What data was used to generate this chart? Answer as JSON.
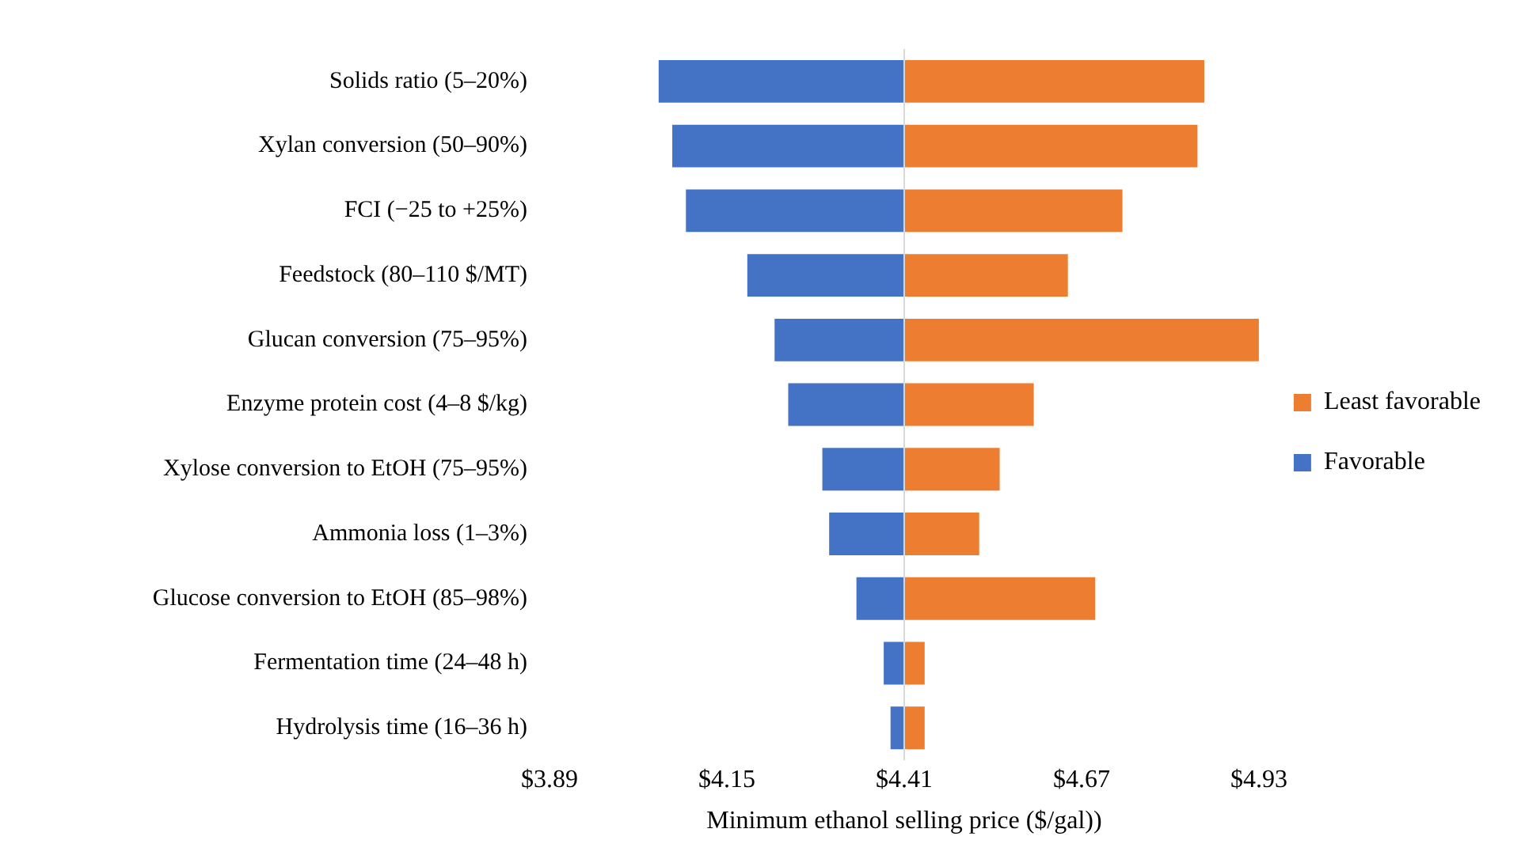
{
  "chart_data": {
    "type": "bar",
    "orientation": "horizontal",
    "xlabel": "Minimum ethanol selling price ($/gal))",
    "categories": [
      "Solids ratio (5–20%)",
      "Xylan conversion (50–90%)",
      "FCI (−25 to +25%)",
      "Feedstock (80–110 $/MT)",
      "Glucan conversion (75–95%)",
      "Enzyme protein cost (4–8 $/kg)",
      "Xylose conversion to EtOH (75–95%)",
      "Ammonia loss (1–3%)",
      "Glucose conversion to EtOH (85–98%)",
      "Fermentation time (24–48 h)",
      "Hydrolysis time (16–36 h)"
    ],
    "series": [
      {
        "name": "Least favorable",
        "color": "#ed7d31",
        "base": [
          4.41,
          4.41,
          4.41,
          4.41,
          4.41,
          4.41,
          4.41,
          4.41,
          4.41,
          4.41,
          4.41
        ],
        "values": [
          0.44,
          0.43,
          0.32,
          0.24,
          0.53,
          0.19,
          0.14,
          0.11,
          0.28,
          0.03,
          0.03
        ]
      },
      {
        "name": "Favorable",
        "color": "#4472c4",
        "base": [
          4.41,
          4.41,
          4.41,
          4.41,
          4.41,
          4.41,
          4.41,
          4.41,
          4.41,
          4.41,
          4.41
        ],
        "values": [
          -0.36,
          -0.34,
          -0.32,
          -0.23,
          -0.19,
          -0.17,
          -0.12,
          -0.11,
          -0.07,
          -0.03,
          -0.02
        ]
      }
    ],
    "xlim": [
      3.89,
      4.93
    ],
    "xticks": [
      {
        "value": 3.89,
        "label": "$3.89"
      },
      {
        "value": 4.15,
        "label": "$4.15"
      },
      {
        "value": 4.41,
        "label": "$4.41"
      },
      {
        "value": 4.67,
        "label": "$4.67"
      },
      {
        "value": 4.93,
        "label": "$4.93"
      }
    ],
    "ref_lines": [
      {
        "axis": "x",
        "value": 4.41,
        "color": "#d9d9d9"
      }
    ],
    "grid": false,
    "legend": "right"
  }
}
